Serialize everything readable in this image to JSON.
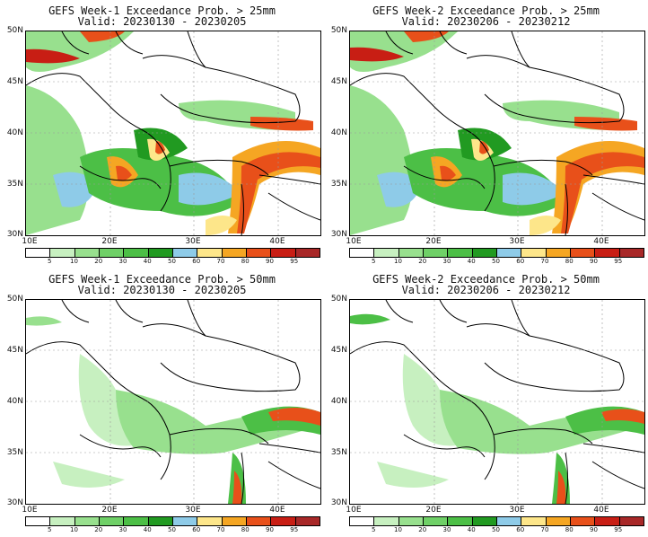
{
  "panels": [
    {
      "title": "GEFS Week-1 Exceedance Prob. > 25mm",
      "valid": "Valid: 20230130 - 20230205"
    },
    {
      "title": "GEFS Week-2 Exceedance Prob. > 25mm",
      "valid": "Valid: 20230206 - 20230212"
    },
    {
      "title": "GEFS Week-1 Exceedance Prob. > 50mm",
      "valid": "Valid: 20230130 - 20230205"
    },
    {
      "title": "GEFS Week-2 Exceedance Prob. > 50mm",
      "valid": "Valid: 20230206 - 20230212"
    }
  ],
  "lat_labels": [
    "50N",
    "45N",
    "40N",
    "35N",
    "30N"
  ],
  "lon_labels": [
    "10E",
    "20E",
    "30E",
    "40E"
  ],
  "colorbar": {
    "ticks": [
      "5",
      "10",
      "20",
      "30",
      "40",
      "50",
      "60",
      "70",
      "80",
      "90",
      "95"
    ],
    "colors": [
      "#ffffff",
      "#c7f0c0",
      "#98e08e",
      "#6fd067",
      "#4cbf46",
      "#219a21",
      "#8ecbe8",
      "#fde68a",
      "#f5a623",
      "#e8501a",
      "#c81e14",
      "#a82828"
    ]
  },
  "colors": {
    "light_green": "#98e08e",
    "green": "#4cbf46",
    "dark_green": "#219a21",
    "blue": "#8ecbe8",
    "yellow": "#fde68a",
    "orange": "#f5a623",
    "red": "#e8501a",
    "dark_red": "#a82828"
  }
}
